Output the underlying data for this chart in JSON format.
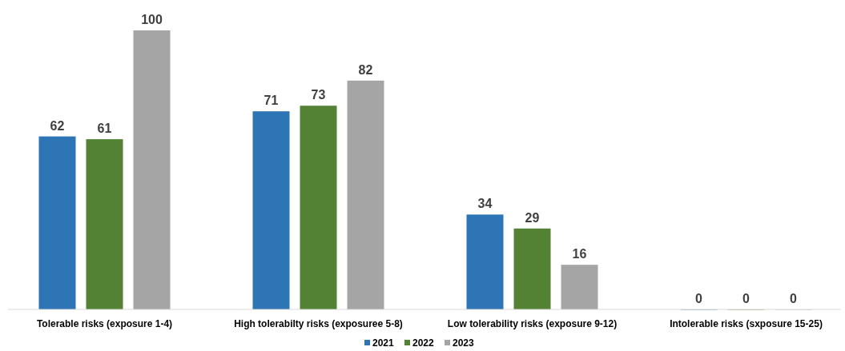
{
  "chart_data": {
    "type": "bar",
    "categories": [
      "Tolerable risks (exposure 1-4)",
      "High tolerabilty risks (exposuree 5-8)",
      "Low tolerability risks (exposure 9-12)",
      "Intolerable risks (sxposure 15-25)"
    ],
    "series": [
      {
        "name": "2021",
        "color": "#2e75b6",
        "values": [
          62,
          71,
          34,
          0
        ]
      },
      {
        "name": "2022",
        "color": "#548235",
        "values": [
          61,
          73,
          29,
          0
        ]
      },
      {
        "name": "2023",
        "color": "#a5a5a5",
        "values": [
          100,
          82,
          16,
          0
        ]
      }
    ],
    "data_labels": true,
    "legend": "bottom",
    "grid": false
  }
}
